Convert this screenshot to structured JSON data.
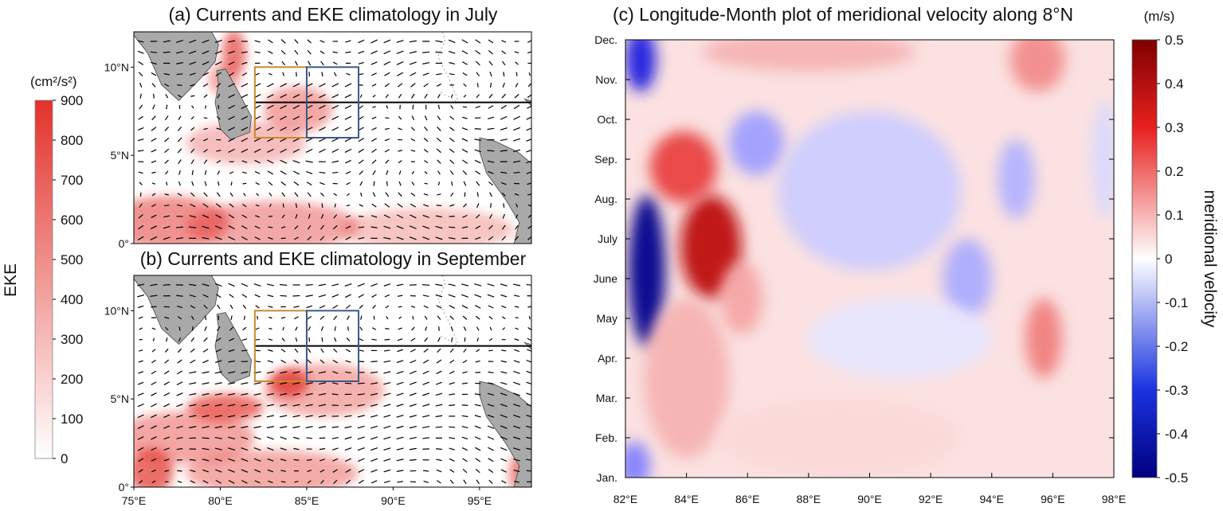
{
  "colors": {
    "land": "#a9a9a9",
    "orange_box": "#c98a2e",
    "blue_box": "#3a5a8c",
    "eke_max": "#e3322b",
    "vel_pos": "#7f0000",
    "vel_neg": "#00007f"
  },
  "chart_data": [
    {
      "type": "heatmap",
      "title": "(a) Currents and EKE climatology in July",
      "x_ticks": [
        "75°E",
        "80°E",
        "85°E",
        "90°E",
        "95°E"
      ],
      "y_ticks": [
        "0°",
        "5°N",
        "10°N"
      ],
      "xlim": [
        75,
        98
      ],
      "ylim": [
        0,
        12
      ],
      "boxes": [
        {
          "name": "orange",
          "lon": [
            82,
            85
          ],
          "lat": [
            6,
            10
          ]
        },
        {
          "name": "blue",
          "lon": [
            85,
            88
          ],
          "lat": [
            6,
            10
          ]
        }
      ],
      "section_line_lat": 8,
      "eke_blobs": [
        {
          "lon": 80.8,
          "lat": 10.8,
          "sx": 0.7,
          "sy": 1.3,
          "v": 550
        },
        {
          "lon": 80.2,
          "lat": 9.3,
          "sx": 0.9,
          "sy": 0.9,
          "v": 300
        },
        {
          "lon": 84.5,
          "lat": 7.6,
          "sx": 2.0,
          "sy": 1.3,
          "v": 320
        },
        {
          "lon": 81.5,
          "lat": 5.7,
          "sx": 3.5,
          "sy": 1.2,
          "v": 180
        },
        {
          "lon": 77,
          "lat": 1.2,
          "sx": 3.5,
          "sy": 1.5,
          "v": 420
        },
        {
          "lon": 83,
          "lat": 1.0,
          "sx": 5,
          "sy": 1.4,
          "v": 300
        },
        {
          "lon": 92,
          "lat": 0.8,
          "sx": 5,
          "sy": 1.2,
          "v": 160
        },
        {
          "lon": 97.8,
          "lat": 0.3,
          "sx": 0.5,
          "sy": 0.5,
          "v": 800
        }
      ]
    },
    {
      "type": "heatmap",
      "title": "(b) Currents and EKE climatology in September",
      "x_ticks": [
        "75°E",
        "80°E",
        "85°E",
        "90°E",
        "95°E"
      ],
      "x_tick_values": [
        75,
        80,
        85,
        90,
        95
      ],
      "y_ticks": [
        "0°",
        "5°N",
        "10°N"
      ],
      "y_tick_values": [
        0,
        5,
        10
      ],
      "xlim": [
        75,
        98
      ],
      "ylim": [
        0,
        12
      ],
      "boxes": [
        {
          "name": "orange",
          "lon": [
            82,
            85
          ],
          "lat": [
            6,
            10
          ]
        },
        {
          "name": "blue",
          "lon": [
            85,
            88
          ],
          "lat": [
            6,
            10
          ]
        }
      ],
      "section_line_lat": 8,
      "eke_blobs": [
        {
          "lon": 84,
          "lat": 5.9,
          "sx": 1.1,
          "sy": 0.8,
          "v": 700
        },
        {
          "lon": 80.3,
          "lat": 4.5,
          "sx": 2.2,
          "sy": 0.8,
          "v": 600
        },
        {
          "lon": 86,
          "lat": 5.5,
          "sx": 3.5,
          "sy": 1.5,
          "v": 260
        },
        {
          "lon": 78,
          "lat": 2.8,
          "sx": 4,
          "sy": 1.5,
          "v": 330
        },
        {
          "lon": 76,
          "lat": 0.9,
          "sx": 1.3,
          "sy": 1.3,
          "v": 620
        },
        {
          "lon": 83,
          "lat": 0.8,
          "sx": 5,
          "sy": 1.3,
          "v": 280
        },
        {
          "lon": 97.5,
          "lat": 0.8,
          "sx": 0.8,
          "sy": 1.2,
          "v": 500
        }
      ]
    },
    {
      "type": "heatmap",
      "title": "(c) Longitude-Month plot of meridional velocity along 8°N",
      "x_ticks": [
        "82°E",
        "84°E",
        "86°E",
        "88°E",
        "90°E",
        "92°E",
        "94°E",
        "96°E",
        "98°E"
      ],
      "x_tick_values": [
        82,
        84,
        86,
        88,
        90,
        92,
        94,
        96,
        98
      ],
      "y_ticks": [
        "Jan.",
        "Feb.",
        "Mar.",
        "Apr.",
        "May",
        "June",
        "July",
        "Aug.",
        "Sep.",
        "Oct.",
        "Nov.",
        "Dec."
      ],
      "xlim": [
        82,
        98
      ],
      "ylim": [
        1,
        12
      ],
      "ylabel": "meridional velocity",
      "unit": "(m/s)",
      "colorbar_ticks": [
        "0.5",
        "0.4",
        "0.3",
        "0.2",
        "0.1",
        "0",
        "-0.1",
        "-0.2",
        "-0.3",
        "-0.4",
        "-0.5"
      ],
      "colorbar_range": [
        -0.5,
        0.5
      ],
      "velocity_features": [
        {
          "lon": 82.7,
          "month": 6.2,
          "sx": 0.6,
          "sy": 1.9,
          "v": -0.48
        },
        {
          "lon": 82.5,
          "month": 11.5,
          "sx": 0.5,
          "sy": 0.8,
          "v": -0.35
        },
        {
          "lon": 82.3,
          "month": 1.3,
          "sx": 0.5,
          "sy": 0.6,
          "v": -0.2
        },
        {
          "lon": 84.8,
          "month": 6.8,
          "sx": 1.0,
          "sy": 1.3,
          "v": 0.38
        },
        {
          "lon": 83.9,
          "month": 8.8,
          "sx": 1.1,
          "sy": 0.9,
          "v": 0.3
        },
        {
          "lon": 85.8,
          "month": 5.5,
          "sx": 0.7,
          "sy": 0.9,
          "v": 0.14
        },
        {
          "lon": 84,
          "month": 3.5,
          "sx": 1.4,
          "sy": 2.0,
          "v": 0.12
        },
        {
          "lon": 88,
          "month": 11.7,
          "sx": 3.5,
          "sy": 0.5,
          "v": 0.12
        },
        {
          "lon": 95.5,
          "month": 11.5,
          "sx": 0.9,
          "sy": 0.8,
          "v": 0.18
        },
        {
          "lon": 95.7,
          "month": 4.5,
          "sx": 0.6,
          "sy": 1.0,
          "v": 0.2
        },
        {
          "lon": 86.3,
          "month": 9.4,
          "sx": 0.9,
          "sy": 0.8,
          "v": -0.15
        },
        {
          "lon": 90,
          "month": 8.2,
          "sx": 3.0,
          "sy": 2.0,
          "v": -0.08
        },
        {
          "lon": 93.2,
          "month": 6.0,
          "sx": 0.8,
          "sy": 1.0,
          "v": -0.13
        },
        {
          "lon": 94.8,
          "month": 8.5,
          "sx": 0.6,
          "sy": 1.0,
          "v": -0.12
        },
        {
          "lon": 91,
          "month": 4.5,
          "sx": 3.0,
          "sy": 1.0,
          "v": -0.04
        },
        {
          "lon": 89,
          "month": 2.0,
          "sx": 4.0,
          "sy": 1.0,
          "v": 0.06
        },
        {
          "lon": 97.7,
          "month": 9.0,
          "sx": 0.4,
          "sy": 1.5,
          "v": -0.06
        }
      ]
    }
  ],
  "eke_colorbar": {
    "title": "EKE",
    "unit": "(cm²/s²)",
    "ticks": [
      "900",
      "800",
      "700",
      "600",
      "500",
      "400",
      "300",
      "200",
      "100",
      "0"
    ],
    "range": [
      0,
      900
    ]
  }
}
